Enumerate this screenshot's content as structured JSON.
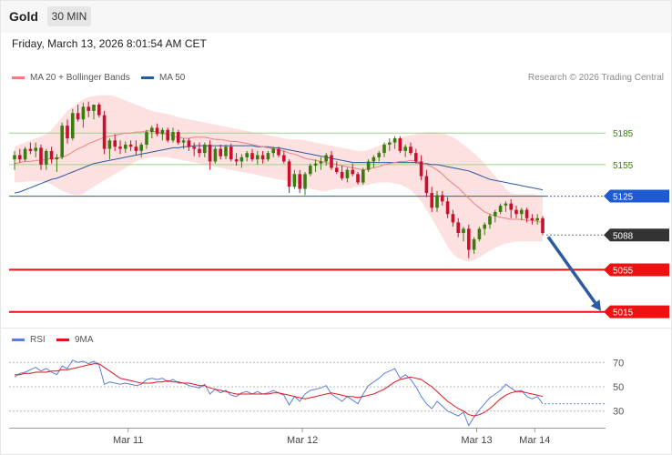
{
  "header": {
    "symbol": "Gold",
    "timeframe": "30 MIN"
  },
  "datetime": "Friday, March 13, 2026 8:01:54 AM CET",
  "credit": "Research © 2026 Trading Central",
  "legend": {
    "ma20": {
      "label": "MA 20 + Bollinger Bands",
      "color": "#f08080"
    },
    "ma50": {
      "label": "MA 50",
      "color": "#2c5aa0"
    },
    "rsi": {
      "label": "RSI",
      "color": "#5b7fd6"
    },
    "rsi_ma": {
      "label": "9MA",
      "color": "#e0141e"
    }
  },
  "colors": {
    "bull": "#3a7d0f",
    "bear": "#c8102e",
    "band": "#fde0e0",
    "green_line": "#9ed28a",
    "support": "#ee1111",
    "blue": "#1f5ad1",
    "arrow": "#2c5aa0"
  },
  "chart_data": [
    {
      "type": "candlestick",
      "title": "",
      "x": {
        "tick_labels": [
          "Mar 11",
          "Mar 12",
          "Mar 13",
          "Mar 14"
        ],
        "tick_positions_bar_index": [
          21.5,
          54.5,
          87.5,
          98.5
        ]
      },
      "y": {
        "range": [
          5000,
          5225
        ]
      },
      "ohlc": [
        [
          5160,
          5168,
          5150,
          5164
        ],
        [
          5164,
          5170,
          5157,
          5160
        ],
        [
          5160,
          5172,
          5158,
          5170
        ],
        [
          5170,
          5176,
          5165,
          5168
        ],
        [
          5168,
          5176,
          5162,
          5171
        ],
        [
          5171,
          5174,
          5150,
          5155
        ],
        [
          5155,
          5170,
          5150,
          5168
        ],
        [
          5168,
          5172,
          5156,
          5160
        ],
        [
          5160,
          5165,
          5148,
          5162
        ],
        [
          5162,
          5195,
          5160,
          5192
        ],
        [
          5192,
          5198,
          5175,
          5180
        ],
        [
          5180,
          5208,
          5178,
          5204
        ],
        [
          5204,
          5212,
          5196,
          5198
        ],
        [
          5198,
          5214,
          5190,
          5210
        ],
        [
          5210,
          5215,
          5200,
          5206
        ],
        [
          5206,
          5212,
          5198,
          5212
        ],
        [
          5212,
          5214,
          5200,
          5202
        ],
        [
          5202,
          5206,
          5165,
          5170
        ],
        [
          5170,
          5180,
          5160,
          5178
        ],
        [
          5178,
          5184,
          5168,
          5172
        ],
        [
          5172,
          5178,
          5165,
          5170
        ],
        [
          5170,
          5177,
          5166,
          5174
        ],
        [
          5174,
          5178,
          5168,
          5172
        ],
        [
          5172,
          5178,
          5164,
          5168
        ],
        [
          5168,
          5176,
          5162,
          5174
        ],
        [
          5174,
          5188,
          5170,
          5186
        ],
        [
          5186,
          5192,
          5180,
          5190
        ],
        [
          5190,
          5194,
          5182,
          5184
        ],
        [
          5184,
          5190,
          5178,
          5188
        ],
        [
          5188,
          5190,
          5176,
          5178
        ],
        [
          5178,
          5190,
          5176,
          5186
        ],
        [
          5186,
          5188,
          5174,
          5176
        ],
        [
          5176,
          5180,
          5170,
          5178
        ],
        [
          5178,
          5180,
          5168,
          5172
        ],
        [
          5172,
          5176,
          5163,
          5170
        ],
        [
          5170,
          5176,
          5162,
          5166
        ],
        [
          5166,
          5176,
          5162,
          5174
        ],
        [
          5174,
          5178,
          5150,
          5158
        ],
        [
          5158,
          5172,
          5156,
          5170
        ],
        [
          5170,
          5174,
          5160,
          5163
        ],
        [
          5163,
          5174,
          5160,
          5172
        ],
        [
          5172,
          5175,
          5158,
          5160
        ],
        [
          5160,
          5166,
          5154,
          5158
        ],
        [
          5158,
          5165,
          5152,
          5162
        ],
        [
          5162,
          5168,
          5158,
          5166
        ],
        [
          5166,
          5170,
          5158,
          5160
        ],
        [
          5160,
          5168,
          5155,
          5164
        ],
        [
          5164,
          5168,
          5156,
          5160
        ],
        [
          5160,
          5168,
          5158,
          5166
        ],
        [
          5166,
          5172,
          5162,
          5170
        ],
        [
          5170,
          5172,
          5162,
          5164
        ],
        [
          5164,
          5168,
          5156,
          5158
        ],
        [
          5158,
          5160,
          5128,
          5134
        ],
        [
          5134,
          5150,
          5132,
          5146
        ],
        [
          5146,
          5150,
          5128,
          5132
        ],
        [
          5132,
          5148,
          5126,
          5146
        ],
        [
          5146,
          5156,
          5144,
          5154
        ],
        [
          5154,
          5160,
          5148,
          5156
        ],
        [
          5156,
          5162,
          5150,
          5158
        ],
        [
          5158,
          5166,
          5154,
          5164
        ],
        [
          5164,
          5168,
          5150,
          5152
        ],
        [
          5152,
          5158,
          5146,
          5148
        ],
        [
          5148,
          5154,
          5140,
          5142
        ],
        [
          5142,
          5152,
          5138,
          5150
        ],
        [
          5150,
          5156,
          5144,
          5146
        ],
        [
          5146,
          5148,
          5136,
          5138
        ],
        [
          5138,
          5152,
          5136,
          5150
        ],
        [
          5150,
          5160,
          5148,
          5158
        ],
        [
          5158,
          5164,
          5152,
          5162
        ],
        [
          5162,
          5168,
          5158,
          5166
        ],
        [
          5166,
          5176,
          5162,
          5174
        ],
        [
          5174,
          5180,
          5168,
          5176
        ],
        [
          5176,
          5182,
          5170,
          5180
        ],
        [
          5180,
          5182,
          5166,
          5168
        ],
        [
          5168,
          5174,
          5162,
          5172
        ],
        [
          5172,
          5176,
          5164,
          5166
        ],
        [
          5166,
          5170,
          5156,
          5158
        ],
        [
          5158,
          5164,
          5140,
          5144
        ],
        [
          5144,
          5150,
          5124,
          5128
        ],
        [
          5128,
          5134,
          5110,
          5114
        ],
        [
          5114,
          5130,
          5110,
          5126
        ],
        [
          5126,
          5130,
          5116,
          5120
        ],
        [
          5120,
          5124,
          5104,
          5108
        ],
        [
          5108,
          5112,
          5096,
          5100
        ],
        [
          5100,
          5104,
          5086,
          5090
        ],
        [
          5090,
          5096,
          5082,
          5094
        ],
        [
          5094,
          5098,
          5066,
          5074
        ],
        [
          5074,
          5086,
          5070,
          5084
        ],
        [
          5084,
          5096,
          5082,
          5094
        ],
        [
          5094,
          5100,
          5088,
          5098
        ],
        [
          5098,
          5108,
          5094,
          5106
        ],
        [
          5106,
          5112,
          5100,
          5110
        ],
        [
          5110,
          5118,
          5108,
          5116
        ],
        [
          5116,
          5120,
          5110,
          5118
        ],
        [
          5118,
          5122,
          5104,
          5112
        ],
        [
          5112,
          5116,
          5104,
          5108
        ],
        [
          5108,
          5114,
          5102,
          5112
        ],
        [
          5112,
          5114,
          5100,
          5104
        ],
        [
          5104,
          5108,
          5098,
          5102
        ],
        [
          5102,
          5108,
          5098,
          5104
        ],
        [
          5104,
          5106,
          5088,
          5090
        ]
      ],
      "ma20": [
        5156,
        5157,
        5158,
        5158,
        5159,
        5159,
        5160,
        5161,
        5161,
        5162,
        5164,
        5167,
        5170,
        5172,
        5175,
        5177,
        5179,
        5181,
        5182,
        5183,
        5184,
        5185,
        5185,
        5186,
        5186,
        5187,
        5187,
        5186,
        5185,
        5184,
        5182,
        5181,
        5180,
        5180,
        5181,
        5181,
        5181,
        5180,
        5179,
        5179,
        5178,
        5177,
        5177,
        5176,
        5175,
        5174,
        5173,
        5172,
        5171,
        5170,
        5169,
        5168,
        5166,
        5165,
        5163,
        5161,
        5160,
        5159,
        5158,
        5157,
        5156,
        5155,
        5154,
        5153,
        5152,
        5151,
        5150,
        5151,
        5152,
        5153,
        5155,
        5156,
        5157,
        5158,
        5158,
        5159,
        5158,
        5157,
        5155,
        5153,
        5150,
        5146,
        5141,
        5137,
        5133,
        5128,
        5123,
        5118,
        5114,
        5110,
        5108,
        5106,
        5105,
        5104,
        5103,
        5103,
        5103,
        5102,
        5102,
        5101,
        5100
      ],
      "bb_upper": [
        5172,
        5174,
        5176,
        5178,
        5180,
        5182,
        5184,
        5188,
        5194,
        5200,
        5206,
        5210,
        5214,
        5217,
        5219,
        5220,
        5221,
        5221,
        5221,
        5220,
        5218,
        5216,
        5214,
        5212,
        5210,
        5208,
        5206,
        5205,
        5204,
        5203,
        5202,
        5200,
        5199,
        5198,
        5197,
        5196,
        5195,
        5194,
        5193,
        5192,
        5191,
        5190,
        5189,
        5188,
        5187,
        5186,
        5185,
        5184,
        5183,
        5182,
        5181,
        5180,
        5179,
        5179,
        5179,
        5178,
        5177,
        5176,
        5175,
        5174,
        5173,
        5172,
        5171,
        5170,
        5169,
        5168,
        5168,
        5169,
        5171,
        5173,
        5175,
        5177,
        5179,
        5181,
        5182,
        5183,
        5184,
        5185,
        5186,
        5186,
        5186,
        5185,
        5183,
        5181,
        5178,
        5174,
        5170,
        5166,
        5161,
        5156,
        5150,
        5144,
        5138,
        5132,
        5128,
        5127,
        5127,
        5127,
        5127,
        5126,
        5126
      ],
      "bb_lower": [
        5138,
        5138,
        5139,
        5139,
        5139,
        5139,
        5138,
        5136,
        5133,
        5130,
        5128,
        5126,
        5126,
        5127,
        5131,
        5134,
        5137,
        5140,
        5143,
        5146,
        5149,
        5152,
        5155,
        5158,
        5160,
        5161,
        5162,
        5162,
        5162,
        5162,
        5161,
        5160,
        5159,
        5158,
        5157,
        5156,
        5155,
        5154,
        5153,
        5152,
        5151,
        5150,
        5149,
        5148,
        5147,
        5146,
        5145,
        5144,
        5143,
        5142,
        5141,
        5140,
        5139,
        5138,
        5136,
        5134,
        5132,
        5131,
        5130,
        5130,
        5131,
        5132,
        5132,
        5132,
        5133,
        5134,
        5135,
        5136,
        5137,
        5138,
        5138,
        5138,
        5137,
        5136,
        5134,
        5131,
        5126,
        5120,
        5112,
        5104,
        5095,
        5086,
        5077,
        5070,
        5066,
        5064,
        5063,
        5064,
        5067,
        5070,
        5073,
        5076,
        5078,
        5080,
        5081,
        5082,
        5082,
        5082,
        5082,
        5082,
        5082
      ],
      "ma50": [
        5128,
        5129,
        5131,
        5133,
        5135,
        5137,
        5139,
        5141,
        5142,
        5144,
        5146,
        5148,
        5150,
        5152,
        5154,
        5156,
        5157,
        5158,
        5159,
        5160,
        5161,
        5162,
        5163,
        5164,
        5165,
        5166,
        5167,
        5168,
        5169,
        5170,
        5171,
        5171,
        5172,
        5172,
        5173,
        5173,
        5173,
        5173,
        5173,
        5173,
        5173,
        5173,
        5173,
        5173,
        5173,
        5173,
        5172,
        5172,
        5172,
        5171,
        5171,
        5170,
        5169,
        5168,
        5167,
        5166,
        5165,
        5164,
        5163,
        5162,
        5161,
        5160,
        5159,
        5158,
        5157,
        5157,
        5157,
        5157,
        5157,
        5157,
        5157,
        5157,
        5157,
        5157,
        5157,
        5157,
        5157,
        5156,
        5156,
        5155,
        5155,
        5154,
        5153,
        5152,
        5151,
        5150,
        5149,
        5147,
        5145,
        5143,
        5141,
        5140,
        5139,
        5138,
        5137,
        5136,
        5135,
        5134,
        5133,
        5132,
        5131
      ],
      "price_levels": [
        {
          "value": 5185,
          "label": "5185",
          "style": "resistance-minor"
        },
        {
          "value": 5155,
          "label": "5155",
          "style": "resistance-minor"
        },
        {
          "value": 5125,
          "label": "5125",
          "style": "pivot"
        },
        {
          "value": 5088,
          "label": "5088",
          "style": "last-price"
        },
        {
          "value": 5055,
          "label": "5055",
          "style": "support"
        },
        {
          "value": 5015,
          "label": "5015",
          "style": "support"
        }
      ],
      "projection": {
        "from_bar": 100,
        "from_value": 5088,
        "to_value": 5015
      },
      "grid": false,
      "legend": "top-left"
    },
    {
      "type": "line",
      "title": "",
      "y": {
        "range": [
          20,
          80
        ],
        "ticks": [
          70,
          50,
          30
        ]
      },
      "series": [
        {
          "name": "RSI",
          "values": [
            58,
            61,
            62,
            64,
            66,
            63,
            65,
            62,
            60,
            67,
            65,
            72,
            70,
            71,
            69,
            71,
            68,
            52,
            54,
            53,
            52,
            53,
            52,
            51,
            52,
            56,
            57,
            56,
            57,
            54,
            56,
            53,
            53,
            51,
            50,
            49,
            52,
            44,
            48,
            45,
            47,
            43,
            42,
            45,
            46,
            44,
            46,
            44,
            45,
            47,
            45,
            43,
            35,
            42,
            38,
            44,
            47,
            48,
            49,
            51,
            44,
            41,
            38,
            42,
            39,
            36,
            44,
            51,
            54,
            57,
            61,
            63,
            65,
            57,
            60,
            56,
            50,
            42,
            36,
            32,
            38,
            34,
            30,
            28,
            26,
            29,
            18,
            25,
            31,
            36,
            41,
            44,
            47,
            52,
            49,
            46,
            47,
            42,
            40,
            42,
            36
          ],
          "last_value_dotted": 36
        },
        {
          "name": "9MA",
          "values": [
            60,
            60,
            61,
            61,
            62,
            62,
            62,
            63,
            63,
            64,
            64,
            65,
            66,
            67,
            68,
            69,
            69,
            66,
            63,
            60,
            57,
            56,
            55,
            54,
            53,
            53,
            53,
            54,
            54,
            55,
            54,
            54,
            53,
            53,
            52,
            51,
            51,
            49,
            48,
            47,
            46,
            45,
            44,
            44,
            44,
            44,
            44,
            44,
            44,
            45,
            45,
            44,
            43,
            42,
            41,
            40,
            41,
            42,
            43,
            44,
            45,
            44,
            43,
            42,
            42,
            41,
            42,
            43,
            44,
            46,
            48,
            51,
            54,
            56,
            57,
            58,
            57,
            56,
            53,
            50,
            46,
            42,
            38,
            35,
            32,
            30,
            27,
            26,
            27,
            29,
            32,
            36,
            40,
            43,
            45,
            46,
            46,
            45,
            44,
            43,
            42
          ]
        }
      ],
      "legend": "top-left"
    }
  ]
}
